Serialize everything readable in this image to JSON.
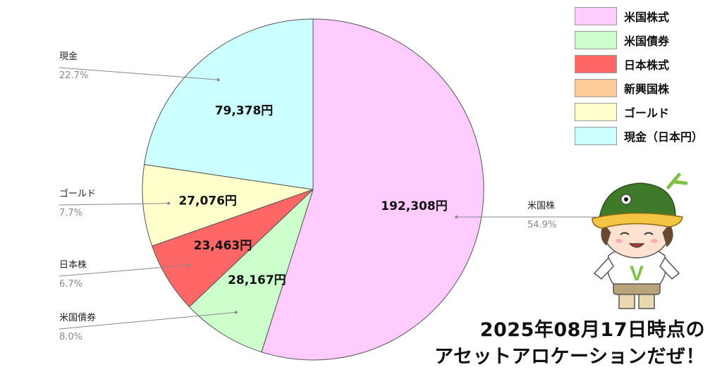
{
  "chart_data": {
    "type": "pie",
    "unit": "円",
    "slices": [
      {
        "key": "us_stock",
        "label": "米国株",
        "value": 192308,
        "value_label": "192,308円",
        "percent": "54.9%",
        "color": "#ffccff"
      },
      {
        "key": "us_bond",
        "label": "米国債券",
        "value": 28167,
        "value_label": "28,167円",
        "percent": "8.0%",
        "color": "#ccffcc"
      },
      {
        "key": "jp_stock",
        "label": "日本株",
        "value": 23463,
        "value_label": "23,463円",
        "percent": "6.7%",
        "color": "#ff6666"
      },
      {
        "key": "gold",
        "label": "ゴールド",
        "value": 27076,
        "value_label": "27,076円",
        "percent": "7.7%",
        "color": "#ffffcc"
      },
      {
        "key": "cash",
        "label": "現金",
        "value": 79378,
        "value_label": "79,378円",
        "percent": "22.7%",
        "color": "#ccffff"
      }
    ],
    "legend": {
      "placement": "top-right",
      "items": [
        {
          "label": "米国株式",
          "color": "#ffccff"
        },
        {
          "label": "米国債券",
          "color": "#ccffcc"
        },
        {
          "label": "日本株式",
          "color": "#ff6666"
        },
        {
          "label": "新興国株",
          "color": "#ffcc99"
        },
        {
          "label": "ゴールド",
          "color": "#ffffcc"
        },
        {
          "label": "現金（日本円）",
          "color": "#ccffff"
        }
      ]
    }
  },
  "caption": {
    "line1": "2025年08月17日時点の",
    "line2": "アセットアロケーションだぜ！"
  },
  "mascot": {
    "icon": "kappa-mascot-icon",
    "cap_color": "#3f7a2a",
    "shirt_letter": "V"
  }
}
